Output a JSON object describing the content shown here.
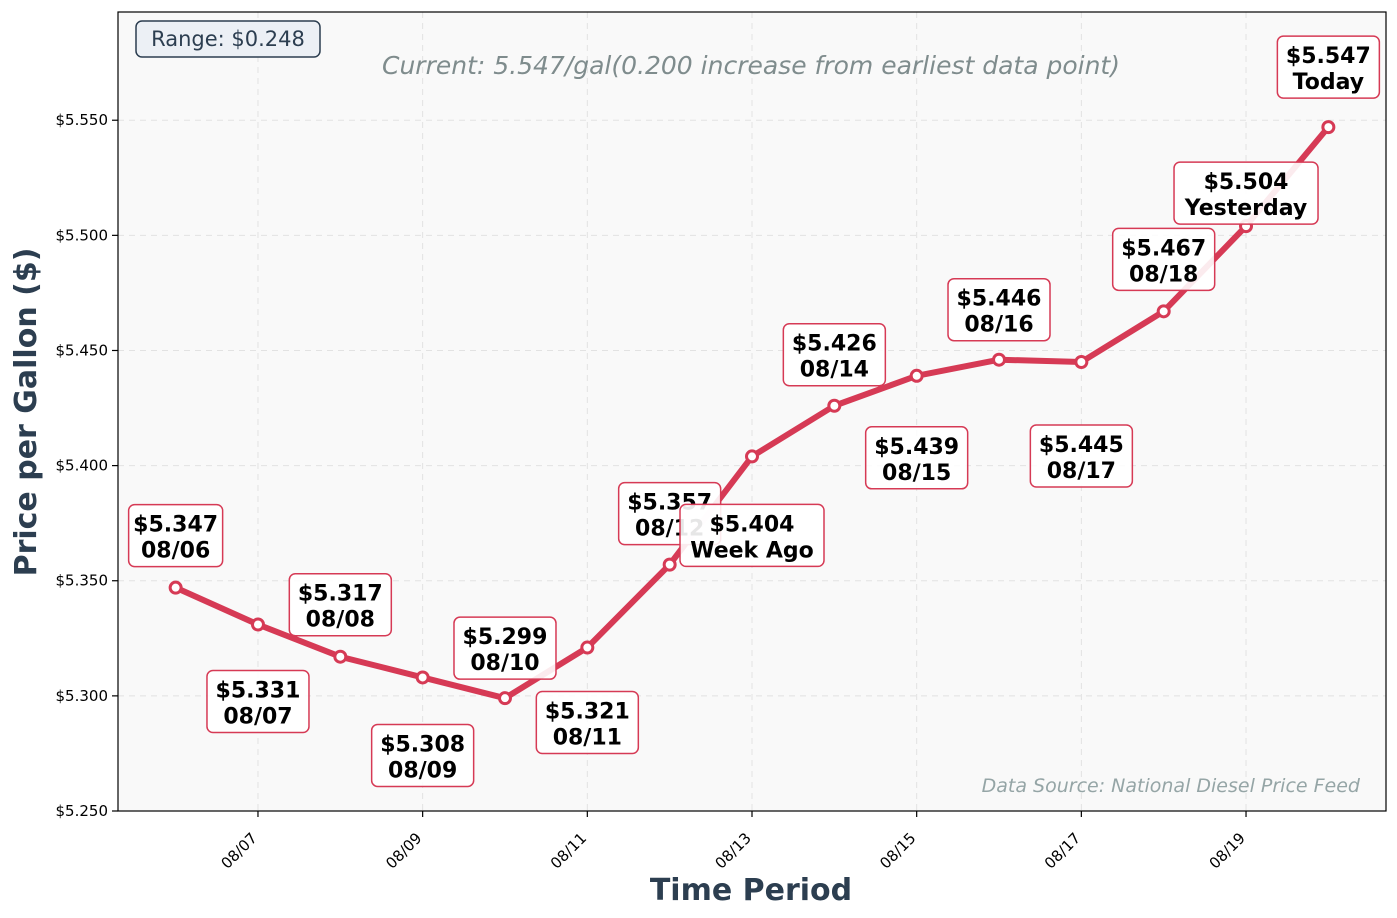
{
  "chart_data": {
    "type": "line",
    "xlabel": "Time Period",
    "ylabel": "Price per Gallon ($)",
    "ylim": [
      5.25,
      5.597
    ],
    "grid": true,
    "range_box": "Range: $0.248",
    "subtitle": "Current: 5.547/gal(0.200 increase from earliest data point)",
    "source": "Data Source: National Diesel Price Feed",
    "y_ticks": [
      "$5.250",
      "$5.300",
      "$5.350",
      "$5.400",
      "$5.450",
      "$5.500",
      "$5.550"
    ],
    "y_tick_values": [
      5.25,
      5.3,
      5.35,
      5.4,
      5.45,
      5.5,
      5.55
    ],
    "x_ticks": [
      "08/07",
      "08/09",
      "08/11",
      "08/13",
      "08/15",
      "08/17",
      "08/19"
    ],
    "x_tick_days": [
      7,
      9,
      11,
      13,
      15,
      17,
      19
    ],
    "x_range_days": [
      5.3,
      20.7
    ],
    "colors": {
      "line": "#d63a55",
      "axis_title": "#2c3e50",
      "subtitle": "#7f8c8d",
      "source": "#95a5a6",
      "plot_bg": "#f9f9f9"
    },
    "points": [
      {
        "day": 6,
        "value": 5.347,
        "price": "$5.347",
        "label": "08/06"
      },
      {
        "day": 7,
        "value": 5.331,
        "price": "$5.331",
        "label": "08/07"
      },
      {
        "day": 8,
        "value": 5.317,
        "price": "$5.317",
        "label": "08/08"
      },
      {
        "day": 9,
        "value": 5.308,
        "price": "$5.308",
        "label": "08/09"
      },
      {
        "day": 10,
        "value": 5.299,
        "price": "$5.299",
        "label": "08/10"
      },
      {
        "day": 11,
        "value": 5.321,
        "price": "$5.321",
        "label": "08/11"
      },
      {
        "day": 12,
        "value": 5.357,
        "price": "$5.357",
        "label": "08/12"
      },
      {
        "day": 13,
        "value": 5.404,
        "price": "$5.404",
        "label": "Week Ago"
      },
      {
        "day": 14,
        "value": 5.426,
        "price": "$5.426",
        "label": "08/14"
      },
      {
        "day": 15,
        "value": 5.439,
        "price": "$5.439",
        "label": "08/15"
      },
      {
        "day": 16,
        "value": 5.446,
        "price": "$5.446",
        "label": "08/16"
      },
      {
        "day": 17,
        "value": 5.445,
        "price": "$5.445",
        "label": "08/17"
      },
      {
        "day": 18,
        "value": 5.467,
        "price": "$5.467",
        "label": "08/18"
      },
      {
        "day": 19,
        "value": 5.504,
        "price": "$5.504",
        "label": "Yesterday"
      },
      {
        "day": 20,
        "value": 5.547,
        "price": "$5.547",
        "label": "Today"
      }
    ]
  }
}
